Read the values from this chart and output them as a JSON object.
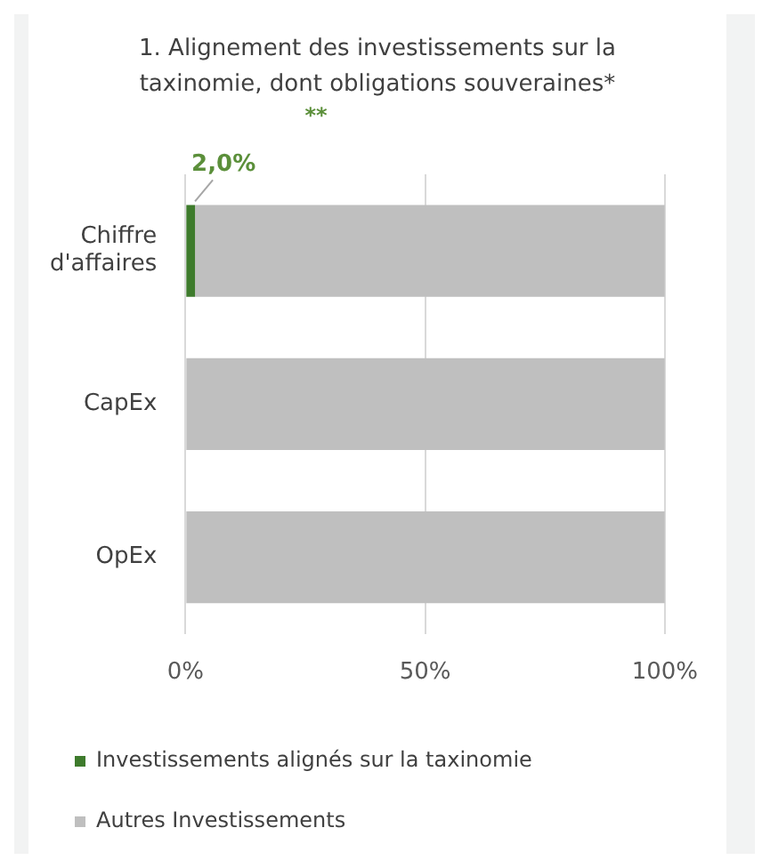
{
  "chart_data": {
    "type": "bar",
    "orientation": "horizontal",
    "stacked": true,
    "title": "1. Alignement des investissements sur la taxinomie, dont obligations souveraines*",
    "categories": [
      "Chiffre d'affaires",
      "CapEx",
      "OpEx"
    ],
    "series": [
      {
        "name": "Investissements alignés sur la taxinomie",
        "color": "#3e7b2c",
        "values": [
          2,
          0,
          0
        ],
        "value_labels": [
          "2,0%",
          null,
          null
        ]
      },
      {
        "name": "Autres Investissements",
        "color": "#bfbfbf",
        "values": [
          98,
          100,
          100
        ]
      }
    ],
    "xlim": [
      0,
      100
    ],
    "xticks": [
      {
        "value": 0,
        "label": "0%"
      },
      {
        "value": 50,
        "label": "50%"
      },
      {
        "value": 100,
        "label": "100%"
      }
    ],
    "grid": "x",
    "legend": "bottom",
    "annotations": [
      "**"
    ]
  }
}
